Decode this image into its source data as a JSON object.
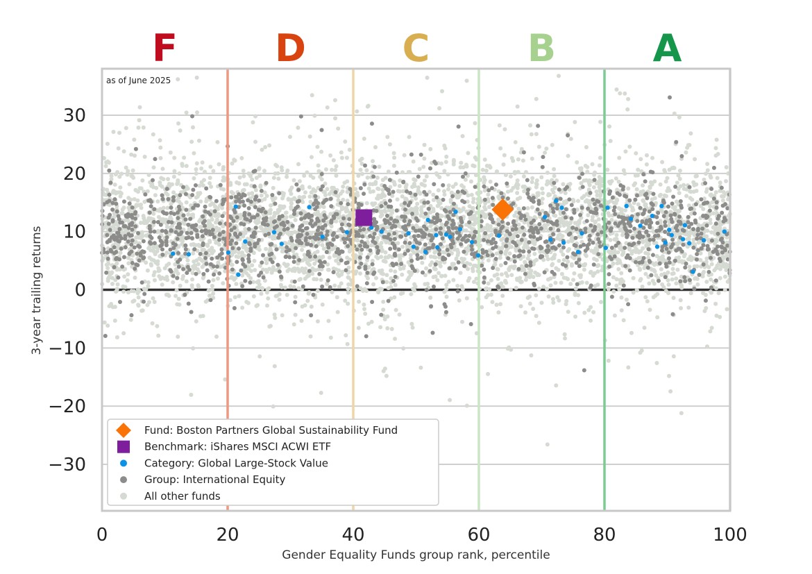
{
  "chart_data": {
    "type": "scatter",
    "note": "as of June 2025",
    "xlabel": "Gender Equality Funds group rank, percentile",
    "ylabel": "3-year trailing returns",
    "xlim": [
      0,
      100
    ],
    "ylim": [
      -38,
      38
    ],
    "xticks": [
      0,
      20,
      40,
      60,
      80,
      100
    ],
    "yticks": [
      -30,
      -20,
      -10,
      0,
      10,
      20,
      30
    ],
    "grid": "horizontal",
    "zero_line": 0,
    "grades": [
      {
        "label": "F",
        "center": 10,
        "color": "#c00c1f",
        "line_at": 20,
        "line_color": "#ec9a83"
      },
      {
        "label": "D",
        "center": 30,
        "color": "#d9430f",
        "line_at": 40,
        "line_color": "#efd6a6"
      },
      {
        "label": "C",
        "center": 50,
        "color": "#d8ae50",
        "line_at": 60,
        "line_color": "#cbe6c4"
      },
      {
        "label": "B",
        "center": 70,
        "color": "#a6d18e",
        "line_at": 80,
        "line_color": "#7ccb93"
      },
      {
        "label": "A",
        "center": 90,
        "color": "#15964a",
        "line_at": 100,
        "line_color": "#d7dcd4"
      }
    ],
    "legend_position": "lower-left",
    "series": [
      {
        "name": "Fund: Boston Partners Global Sustainability Fund",
        "marker": "diamond",
        "color": "#f97306",
        "points": [
          [
            63.8,
            13.8
          ]
        ]
      },
      {
        "name": "Benchmark: iShares MSCI ACWI ETF",
        "marker": "square",
        "color": "#7e1e9c",
        "points": [
          [
            41.7,
            12.4
          ]
        ]
      },
      {
        "name": "Category: Global Large-Stock Value",
        "marker": "dot",
        "color": "#0a93e6",
        "points": [
          [
            11.3,
            6.2
          ],
          [
            13.8,
            6.1
          ],
          [
            20.1,
            6.4
          ],
          [
            21.3,
            14.3
          ],
          [
            21.7,
            2.6
          ],
          [
            22.8,
            8.3
          ],
          [
            27.4,
            9.9
          ],
          [
            28.6,
            7.9
          ],
          [
            33.0,
            14.2
          ],
          [
            35.1,
            9.1
          ],
          [
            39.0,
            9.9
          ],
          [
            42.9,
            10.7
          ],
          [
            44.5,
            10.0
          ],
          [
            48.8,
            9.7
          ],
          [
            49.6,
            7.4
          ],
          [
            51.5,
            6.5
          ],
          [
            51.9,
            12.0
          ],
          [
            53.2,
            9.4
          ],
          [
            53.4,
            7.3
          ],
          [
            54.8,
            9.5
          ],
          [
            55.4,
            9.1
          ],
          [
            56.3,
            13.4
          ],
          [
            57.0,
            10.4
          ],
          [
            58.9,
            8.2
          ],
          [
            59.9,
            5.9
          ],
          [
            63.2,
            9.3
          ],
          [
            70.5,
            12.5
          ],
          [
            71.4,
            8.6
          ],
          [
            72.3,
            15.3
          ],
          [
            73.2,
            14.1
          ],
          [
            73.5,
            8.1
          ],
          [
            75.8,
            6.5
          ],
          [
            76.4,
            9.7
          ],
          [
            80.2,
            7.2
          ],
          [
            80.5,
            14.1
          ],
          [
            83.5,
            14.4
          ],
          [
            84.2,
            12.2
          ],
          [
            85.7,
            11.0
          ],
          [
            87.6,
            12.7
          ],
          [
            88.4,
            7.4
          ],
          [
            89.1,
            14.4
          ],
          [
            89.7,
            8.1
          ],
          [
            90.3,
            10.3
          ],
          [
            90.7,
            9.4
          ],
          [
            92.5,
            8.7
          ],
          [
            92.8,
            11.1
          ],
          [
            93.5,
            8.0
          ],
          [
            94.1,
            3.1
          ],
          [
            95.8,
            8.5
          ],
          [
            99.1,
            10.0
          ]
        ]
      },
      {
        "name": "Group: International Equity",
        "marker": "dot",
        "color": "#8c8c8a",
        "points": []
      },
      {
        "name": "All other funds",
        "marker": "dot",
        "color": "#d5dad2",
        "points": []
      }
    ],
    "group_summary": {
      "count": 1500,
      "center": 10,
      "spread": 4
    },
    "other_summary": {
      "count": 4200,
      "center": 10,
      "spread": 6
    }
  }
}
